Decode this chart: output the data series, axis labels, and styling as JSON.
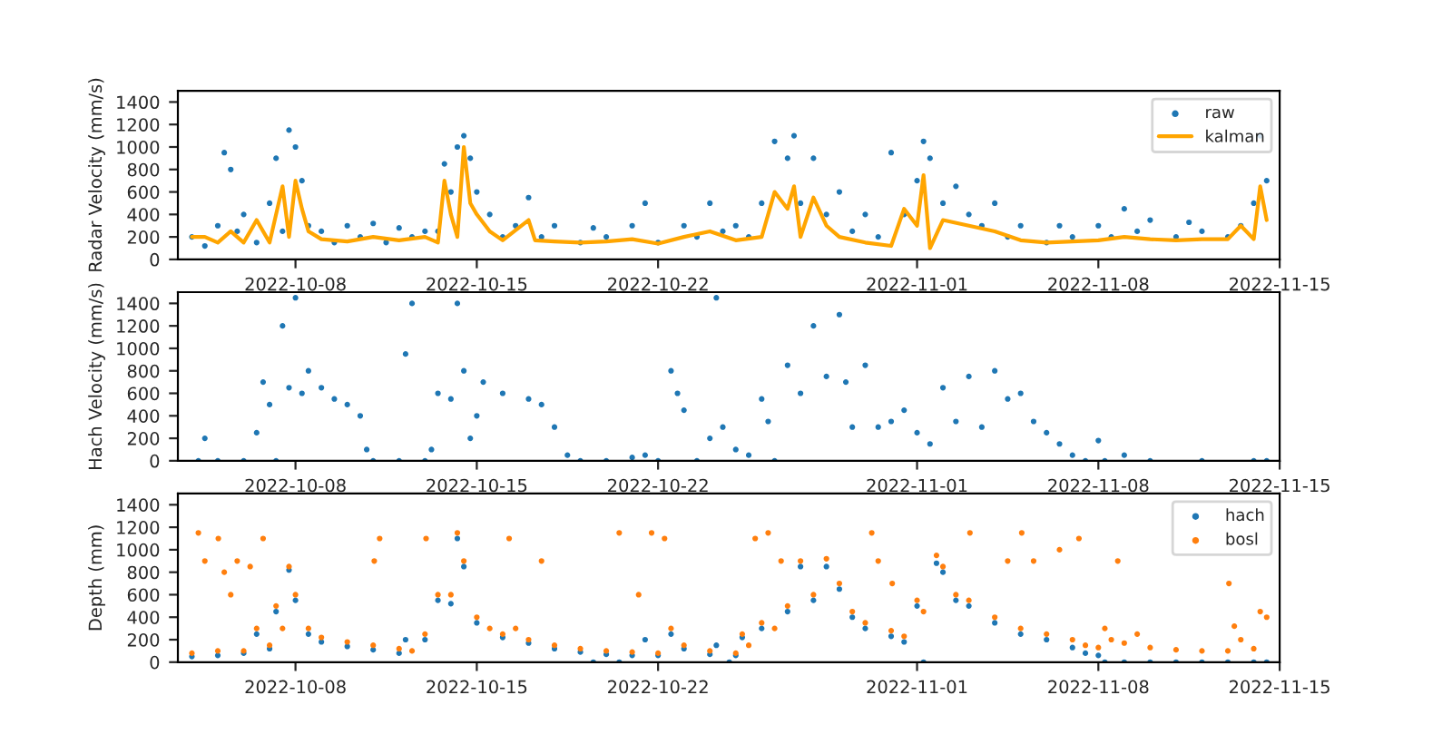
{
  "chart_data": [
    {
      "type": "scatter",
      "ylabel": "Radar Velocity (mm/s)",
      "xlim": [
        "2022-10-03T11:00",
        "2022-11-15"
      ],
      "xticks": [
        {
          "value": "2022-10-08",
          "label": "2022-10-08"
        },
        {
          "value": "2022-10-15",
          "label": "2022-10-15"
        },
        {
          "value": "2022-10-22",
          "label": "2022-10-22"
        },
        {
          "value": "2022-11-01",
          "label": "2022-11-01"
        },
        {
          "value": "2022-11-08",
          "label": "2022-11-08"
        },
        {
          "value": "2022-11-15",
          "label": "2022-11-15"
        }
      ],
      "ylim": [
        0,
        1500
      ],
      "yticks": [
        0,
        200,
        400,
        600,
        800,
        1000,
        1200,
        1400
      ],
      "grid": false,
      "legend": "top right",
      "series": [
        {
          "name": "raw",
          "marker": "circle",
          "color": "#1f77b4",
          "x": [
            "2022-10-04",
            "2022-10-04T12:00",
            "2022-10-05",
            "2022-10-05T06:00",
            "2022-10-05T12:00",
            "2022-10-05T18:00",
            "2022-10-06",
            "2022-10-06T12:00",
            "2022-10-07",
            "2022-10-07T06:00",
            "2022-10-07T12:00",
            "2022-10-07T18:00",
            "2022-10-08",
            "2022-10-08T06:00",
            "2022-10-08T12:00",
            "2022-10-09",
            "2022-10-09T12:00",
            "2022-10-10",
            "2022-10-10T12:00",
            "2022-10-11",
            "2022-10-11T12:00",
            "2022-10-12",
            "2022-10-12T12:00",
            "2022-10-13",
            "2022-10-13T12:00",
            "2022-10-13T18:00",
            "2022-10-14",
            "2022-10-14T06:00",
            "2022-10-14T12:00",
            "2022-10-14T18:00",
            "2022-10-15",
            "2022-10-15T12:00",
            "2022-10-16",
            "2022-10-16T12:00",
            "2022-10-17",
            "2022-10-17T12:00",
            "2022-10-18",
            "2022-10-19",
            "2022-10-19T12:00",
            "2022-10-20",
            "2022-10-21",
            "2022-10-21T12:00",
            "2022-10-22",
            "2022-10-23",
            "2022-10-23T12:00",
            "2022-10-24",
            "2022-10-24T12:00",
            "2022-10-25",
            "2022-10-25T12:00",
            "2022-10-26",
            "2022-10-26T12:00",
            "2022-10-27",
            "2022-10-27T06:00",
            "2022-10-27T12:00",
            "2022-10-28",
            "2022-10-28T12:00",
            "2022-10-29",
            "2022-10-29T12:00",
            "2022-10-30",
            "2022-10-30T12:00",
            "2022-10-31",
            "2022-10-31T12:00",
            "2022-11-01",
            "2022-11-01T06:00",
            "2022-11-01T12:00",
            "2022-11-02",
            "2022-11-02T12:00",
            "2022-11-03",
            "2022-11-03T12:00",
            "2022-11-04",
            "2022-11-04T12:00",
            "2022-11-05",
            "2022-11-06",
            "2022-11-06T12:00",
            "2022-11-07",
            "2022-11-08",
            "2022-11-08T12:00",
            "2022-11-09",
            "2022-11-09T12:00",
            "2022-11-10",
            "2022-11-11",
            "2022-11-11T12:00",
            "2022-11-12",
            "2022-11-13",
            "2022-11-13T12:00",
            "2022-11-14",
            "2022-11-14T06:00",
            "2022-11-14T12:00"
          ],
          "values": [
            200,
            120,
            300,
            950,
            800,
            250,
            400,
            150,
            500,
            900,
            250,
            1150,
            1000,
            700,
            300,
            250,
            150,
            300,
            200,
            320,
            150,
            280,
            200,
            250,
            250,
            850,
            600,
            1000,
            1100,
            900,
            600,
            400,
            200,
            300,
            550,
            200,
            300,
            150,
            280,
            200,
            300,
            500,
            150,
            300,
            200,
            500,
            250,
            300,
            200,
            500,
            1050,
            900,
            1100,
            500,
            900,
            400,
            600,
            250,
            400,
            200,
            950,
            400,
            700,
            1050,
            900,
            500,
            650,
            400,
            300,
            500,
            200,
            300,
            150,
            300,
            200,
            300,
            200,
            450,
            250,
            350,
            200,
            330,
            250,
            200,
            300,
            500,
            1100,
            700
          ]
        },
        {
          "name": "kalman",
          "type": "line",
          "marker": "none",
          "color": "#ffa500",
          "x": [
            "2022-10-04",
            "2022-10-04T12:00",
            "2022-10-05",
            "2022-10-05T12:00",
            "2022-10-06",
            "2022-10-06T12:00",
            "2022-10-07",
            "2022-10-07T12:00",
            "2022-10-07T18:00",
            "2022-10-08",
            "2022-10-08T06:00",
            "2022-10-08T12:00",
            "2022-10-09",
            "2022-10-10",
            "2022-10-11",
            "2022-10-12",
            "2022-10-13",
            "2022-10-13T12:00",
            "2022-10-13T18:00",
            "2022-10-14",
            "2022-10-14T06:00",
            "2022-10-14T12:00",
            "2022-10-14T18:00",
            "2022-10-15",
            "2022-10-15T12:00",
            "2022-10-16",
            "2022-10-17",
            "2022-10-17T06:00",
            "2022-10-18",
            "2022-10-19",
            "2022-10-20",
            "2022-10-21",
            "2022-10-22",
            "2022-10-23",
            "2022-10-24",
            "2022-10-25",
            "2022-10-26",
            "2022-10-26T12:00",
            "2022-10-27",
            "2022-10-27T06:00",
            "2022-10-27T12:00",
            "2022-10-28",
            "2022-10-28T12:00",
            "2022-10-29",
            "2022-10-30",
            "2022-10-31",
            "2022-10-31T12:00",
            "2022-11-01",
            "2022-11-01T06:00",
            "2022-11-01T12:00",
            "2022-11-02",
            "2022-11-03",
            "2022-11-04",
            "2022-11-05",
            "2022-11-06",
            "2022-11-07",
            "2022-11-08",
            "2022-11-09",
            "2022-11-10",
            "2022-11-11",
            "2022-11-12",
            "2022-11-13",
            "2022-11-13T12:00",
            "2022-11-14",
            "2022-11-14T06:00",
            "2022-11-14T12:00"
          ],
          "values": [
            200,
            200,
            150,
            250,
            150,
            350,
            150,
            650,
            200,
            700,
            450,
            250,
            180,
            160,
            200,
            170,
            200,
            150,
            700,
            400,
            200,
            1000,
            500,
            400,
            250,
            170,
            350,
            170,
            160,
            150,
            160,
            180,
            140,
            200,
            250,
            170,
            200,
            600,
            450,
            650,
            200,
            550,
            300,
            200,
            150,
            120,
            450,
            300,
            750,
            100,
            350,
            300,
            250,
            170,
            150,
            160,
            170,
            200,
            180,
            170,
            180,
            180,
            300,
            180,
            650,
            350
          ]
        }
      ]
    },
    {
      "type": "scatter",
      "ylabel": "Hach Velocity (mm/s)",
      "xlim": [
        "2022-10-03T11:00",
        "2022-11-15"
      ],
      "xticks": [
        {
          "value": "2022-10-08",
          "label": "2022-10-08"
        },
        {
          "value": "2022-10-15",
          "label": "2022-10-15"
        },
        {
          "value": "2022-10-22",
          "label": "2022-10-22"
        },
        {
          "value": "2022-11-01",
          "label": "2022-11-01"
        },
        {
          "value": "2022-11-08",
          "label": "2022-11-08"
        },
        {
          "value": "2022-11-15",
          "label": "2022-11-15"
        }
      ],
      "ylim": [
        0,
        1500
      ],
      "yticks": [
        0,
        200,
        400,
        600,
        800,
        1000,
        1200,
        1400
      ],
      "grid": false,
      "legend": false,
      "marker": "circle",
      "series": [
        {
          "color": "#1f77b4",
          "x": [
            "2022-10-04T06:00",
            "2022-10-04T12:00",
            "2022-10-05",
            "2022-10-06",
            "2022-10-06T12:00",
            "2022-10-06T18:00",
            "2022-10-07",
            "2022-10-07T06:00",
            "2022-10-07T12:00",
            "2022-10-07T18:00",
            "2022-10-08",
            "2022-10-08T06:00",
            "2022-10-08T12:00",
            "2022-10-09",
            "2022-10-09T12:00",
            "2022-10-10",
            "2022-10-10T12:00",
            "2022-10-10T18:00",
            "2022-10-11",
            "2022-10-12",
            "2022-10-12T06:00",
            "2022-10-12T12:00",
            "2022-10-13",
            "2022-10-13T06:00",
            "2022-10-13T12:00",
            "2022-10-14",
            "2022-10-14T06:00",
            "2022-10-14T12:00",
            "2022-10-14T18:00",
            "2022-10-15",
            "2022-10-15T06:00",
            "2022-10-16",
            "2022-10-17",
            "2022-10-17T12:00",
            "2022-10-18",
            "2022-10-18T12:00",
            "2022-10-19",
            "2022-10-20",
            "2022-10-21",
            "2022-10-21T12:00",
            "2022-10-22",
            "2022-10-22T12:00",
            "2022-10-22T18:00",
            "2022-10-23",
            "2022-10-23T12:00",
            "2022-10-24",
            "2022-10-24T06:00",
            "2022-10-24T12:00",
            "2022-10-25",
            "2022-10-25T12:00",
            "2022-10-26",
            "2022-10-26T06:00",
            "2022-10-26T12:00",
            "2022-10-27",
            "2022-10-27T12:00",
            "2022-10-28",
            "2022-10-28T12:00",
            "2022-10-29",
            "2022-10-29T06:00",
            "2022-10-29T12:00",
            "2022-10-30",
            "2022-10-30T12:00",
            "2022-10-31",
            "2022-10-31T12:00",
            "2022-11-01",
            "2022-11-01T12:00",
            "2022-11-02",
            "2022-11-02T12:00",
            "2022-11-03",
            "2022-11-03T12:00",
            "2022-11-04",
            "2022-11-04T12:00",
            "2022-11-05",
            "2022-11-05T12:00",
            "2022-11-06",
            "2022-11-06T12:00",
            "2022-11-07",
            "2022-11-07T12:00",
            "2022-11-08",
            "2022-11-08T06:00",
            "2022-11-09",
            "2022-11-10",
            "2022-11-12",
            "2022-11-14",
            "2022-11-14T12:00"
          ],
          "values": [
            0,
            200,
            0,
            0,
            250,
            700,
            500,
            0,
            1200,
            650,
            1450,
            600,
            800,
            650,
            550,
            500,
            400,
            100,
            0,
            0,
            950,
            1400,
            0,
            100,
            600,
            550,
            1400,
            800,
            200,
            400,
            700,
            600,
            550,
            500,
            300,
            50,
            0,
            0,
            30,
            50,
            0,
            800,
            600,
            450,
            0,
            200,
            1450,
            300,
            100,
            50,
            550,
            350,
            0,
            850,
            600,
            1200,
            750,
            1300,
            700,
            300,
            850,
            300,
            350,
            450,
            250,
            150,
            650,
            350,
            750,
            300,
            800,
            550,
            600,
            350,
            250,
            150,
            50,
            0,
            180,
            0,
            50,
            0,
            0,
            0,
            0
          ]
        }
      ]
    },
    {
      "type": "scatter",
      "ylabel": "Depth (mm)",
      "xlim": [
        "2022-10-03T11:00",
        "2022-11-15"
      ],
      "xticks": [
        {
          "value": "2022-10-08",
          "label": "2022-10-08"
        },
        {
          "value": "2022-10-15",
          "label": "2022-10-15"
        },
        {
          "value": "2022-10-22",
          "label": "2022-10-22"
        },
        {
          "value": "2022-11-01",
          "label": "2022-11-01"
        },
        {
          "value": "2022-11-08",
          "label": "2022-11-08"
        },
        {
          "value": "2022-11-15",
          "label": "2022-11-15"
        }
      ],
      "ylim": [
        0,
        1500
      ],
      "yticks": [
        0,
        200,
        400,
        600,
        800,
        1000,
        1200,
        1400
      ],
      "grid": false,
      "legend": "top right",
      "marker": "circle",
      "series": [
        {
          "name": "hach",
          "color": "#1f77b4",
          "x": [
            "2022-10-04",
            "2022-10-05",
            "2022-10-06",
            "2022-10-06T12:00",
            "2022-10-07",
            "2022-10-07T06:00",
            "2022-10-07T18:00",
            "2022-10-08",
            "2022-10-08T12:00",
            "2022-10-09",
            "2022-10-10",
            "2022-10-11",
            "2022-10-12",
            "2022-10-12T06:00",
            "2022-10-13",
            "2022-10-13T12:00",
            "2022-10-14",
            "2022-10-14T06:00",
            "2022-10-14T12:00",
            "2022-10-15",
            "2022-10-16",
            "2022-10-17",
            "2022-10-18",
            "2022-10-19",
            "2022-10-19T12:00",
            "2022-10-20",
            "2022-10-20T12:00",
            "2022-10-21",
            "2022-10-21T12:00",
            "2022-10-22",
            "2022-10-22T12:00",
            "2022-10-23",
            "2022-10-24",
            "2022-10-24T06:00",
            "2022-10-24T18:00",
            "2022-10-25",
            "2022-10-25T06:00",
            "2022-10-26",
            "2022-10-27",
            "2022-10-27T12:00",
            "2022-10-28",
            "2022-10-28T12:00",
            "2022-10-29",
            "2022-10-29T12:00",
            "2022-10-30",
            "2022-10-31",
            "2022-10-31T12:00",
            "2022-11-01",
            "2022-11-01T06:00",
            "2022-11-01T18:00",
            "2022-11-02",
            "2022-11-02T12:00",
            "2022-11-03",
            "2022-11-04",
            "2022-11-05",
            "2022-11-06",
            "2022-11-07",
            "2022-11-07T12:00",
            "2022-11-08",
            "2022-11-08T06:00",
            "2022-11-09",
            "2022-11-10",
            "2022-11-11",
            "2022-11-12",
            "2022-11-13",
            "2022-11-14",
            "2022-11-14T12:00"
          ],
          "values": [
            50,
            60,
            80,
            250,
            120,
            450,
            820,
            550,
            250,
            180,
            140,
            110,
            80,
            200,
            200,
            550,
            520,
            1100,
            850,
            350,
            220,
            170,
            120,
            90,
            0,
            70,
            0,
            60,
            200,
            60,
            250,
            120,
            70,
            150,
            0,
            60,
            220,
            300,
            450,
            850,
            550,
            850,
            650,
            400,
            300,
            230,
            180,
            500,
            0,
            880,
            800,
            550,
            500,
            350,
            250,
            200,
            130,
            80,
            60,
            0,
            0,
            0,
            0,
            0,
            0,
            0,
            0
          ]
        },
        {
          "name": "bosl",
          "color": "#ff7f0e",
          "x": [
            "2022-10-04",
            "2022-10-05",
            "2022-10-06",
            "2022-10-06T12:00",
            "2022-10-07",
            "2022-10-07T06:00",
            "2022-10-07T12:00",
            "2022-10-07T18:00",
            "2022-10-08",
            "2022-10-08T12:00",
            "2022-10-09",
            "2022-10-10",
            "2022-10-11",
            "2022-10-12",
            "2022-10-12T12:00",
            "2022-10-13",
            "2022-10-13T12:00",
            "2022-10-14",
            "2022-10-14T06:00",
            "2022-10-14T12:00",
            "2022-10-15",
            "2022-10-15T12:00",
            "2022-10-16",
            "2022-10-16T12:00",
            "2022-10-17",
            "2022-10-18",
            "2022-10-19",
            "2022-10-20",
            "2022-10-21",
            "2022-10-22",
            "2022-10-22T12:00",
            "2022-10-23",
            "2022-10-24",
            "2022-10-25",
            "2022-10-25T06:00",
            "2022-10-25T12:00",
            "2022-10-26",
            "2022-10-26T12:00",
            "2022-10-27",
            "2022-10-27T12:00",
            "2022-10-28",
            "2022-10-28T12:00",
            "2022-10-29",
            "2022-10-29T12:00",
            "2022-10-30",
            "2022-10-31",
            "2022-10-31T12:00",
            "2022-11-01",
            "2022-11-01T06:00",
            "2022-11-01T18:00",
            "2022-11-02",
            "2022-11-02T12:00",
            "2022-11-03",
            "2022-11-04",
            "2022-11-05",
            "2022-11-06",
            "2022-11-07",
            "2022-11-07T12:00",
            "2022-11-08",
            "2022-11-08T06:00",
            "2022-11-08T12:00",
            "2022-11-09",
            "2022-11-09T12:00",
            "2022-11-10",
            "2022-11-11",
            "2022-11-12",
            "2022-11-13",
            "2022-11-13T06:00",
            "2022-11-13T12:00",
            "2022-11-14",
            "2022-11-14T06:00",
            "2022-11-14T12:00",
            "2022-10-04T06:00",
            "2022-10-04T12:00",
            "2022-10-05T00:30",
            "2022-10-05T06:00",
            "2022-10-05T12:00",
            "2022-10-05T18:00",
            "2022-10-06T06:00",
            "2022-10-06T18:00",
            "2022-10-11T01:00",
            "2022-10-11T06:00",
            "2022-10-13T01:00",
            "2022-10-16T06:00",
            "2022-10-17T12:00",
            "2022-10-20T12:00",
            "2022-10-21T06:00",
            "2022-10-21T18:00",
            "2022-10-22T06:00",
            "2022-10-25T18:00",
            "2022-10-26T06:00",
            "2022-10-26T18:00",
            "2022-10-30T06:00",
            "2022-10-30T12:00",
            "2022-10-31T01:00",
            "2022-11-03T01:00",
            "2022-11-04T12:00",
            "2022-11-05T01:00",
            "2022-11-05T12:00",
            "2022-11-06T12:00",
            "2022-11-07T06:00",
            "2022-11-08T18:00",
            "2022-11-13T01:00"
          ],
          "values": [
            80,
            100,
            100,
            300,
            150,
            500,
            300,
            850,
            600,
            300,
            220,
            180,
            150,
            120,
            100,
            250,
            600,
            600,
            1150,
            900,
            400,
            300,
            250,
            300,
            200,
            150,
            120,
            100,
            90,
            80,
            300,
            150,
            100,
            80,
            250,
            150,
            350,
            300,
            500,
            900,
            600,
            920,
            700,
            450,
            350,
            280,
            230,
            550,
            450,
            950,
            850,
            600,
            550,
            400,
            300,
            250,
            200,
            150,
            130,
            300,
            200,
            170,
            250,
            130,
            110,
            100,
            100,
            320,
            200,
            120,
            450,
            400,
            1150,
            900,
            1100,
            800,
            600,
            900,
            850,
            1100,
            900,
            1100,
            1100,
            1100,
            900,
            1150,
            600,
            1150,
            1100,
            1100,
            1150,
            900,
            1150,
            900,
            700,
            1150,
            900,
            1150,
            900,
            1000,
            1100,
            900,
            700
          ]
        }
      ]
    }
  ]
}
